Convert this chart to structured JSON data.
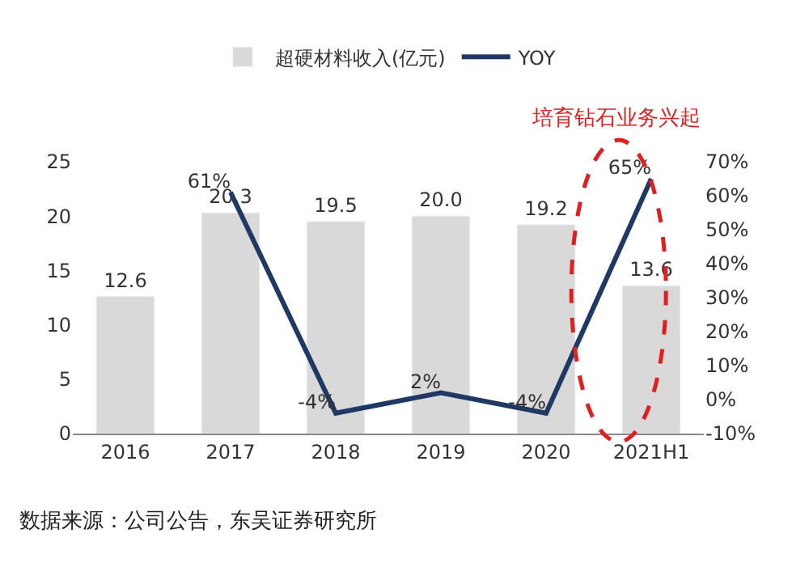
{
  "chart_data": {
    "type": "bar",
    "categories": [
      "2016",
      "2017",
      "2018",
      "2019",
      "2020",
      "2021H1"
    ],
    "series": [
      {
        "name": "超硬材料收入(亿元)",
        "color": "#d9d9d9",
        "values": [
          12.6,
          20.3,
          19.5,
          20.0,
          19.2,
          13.6
        ],
        "value_labels": [
          "12.6",
          "20.3",
          "19.5",
          "20.0",
          "19.2",
          "13.6"
        ]
      },
      {
        "name": "YOY",
        "type": "line",
        "axis": "y2",
        "color": "#1f3864",
        "values": [
          null,
          61,
          -4,
          2,
          -4,
          65
        ],
        "value_labels": [
          null,
          "61%",
          "-4%",
          "2%",
          "-4%",
          "65%"
        ]
      }
    ],
    "ylim": [
      0,
      25
    ],
    "yticks": [
      0,
      5,
      10,
      15,
      20,
      25
    ],
    "y2lim": [
      -10,
      70
    ],
    "y2ticks": [
      {
        "value": -10,
        "label": "-10%"
      },
      {
        "value": 0,
        "label": "0%"
      },
      {
        "value": 10,
        "label": "10%"
      },
      {
        "value": 20,
        "label": "20%"
      },
      {
        "value": 30,
        "label": "30%"
      },
      {
        "value": 40,
        "label": "40%"
      },
      {
        "value": 50,
        "label": "50%"
      },
      {
        "value": 60,
        "label": "60%"
      },
      {
        "value": 70,
        "label": "70%"
      }
    ],
    "legend": "top",
    "marker": "none",
    "line_style": "solid",
    "annotations": [
      "培育钻石业务兴起",
      "数据来源：公司公告，东吴证券研究所"
    ]
  }
}
